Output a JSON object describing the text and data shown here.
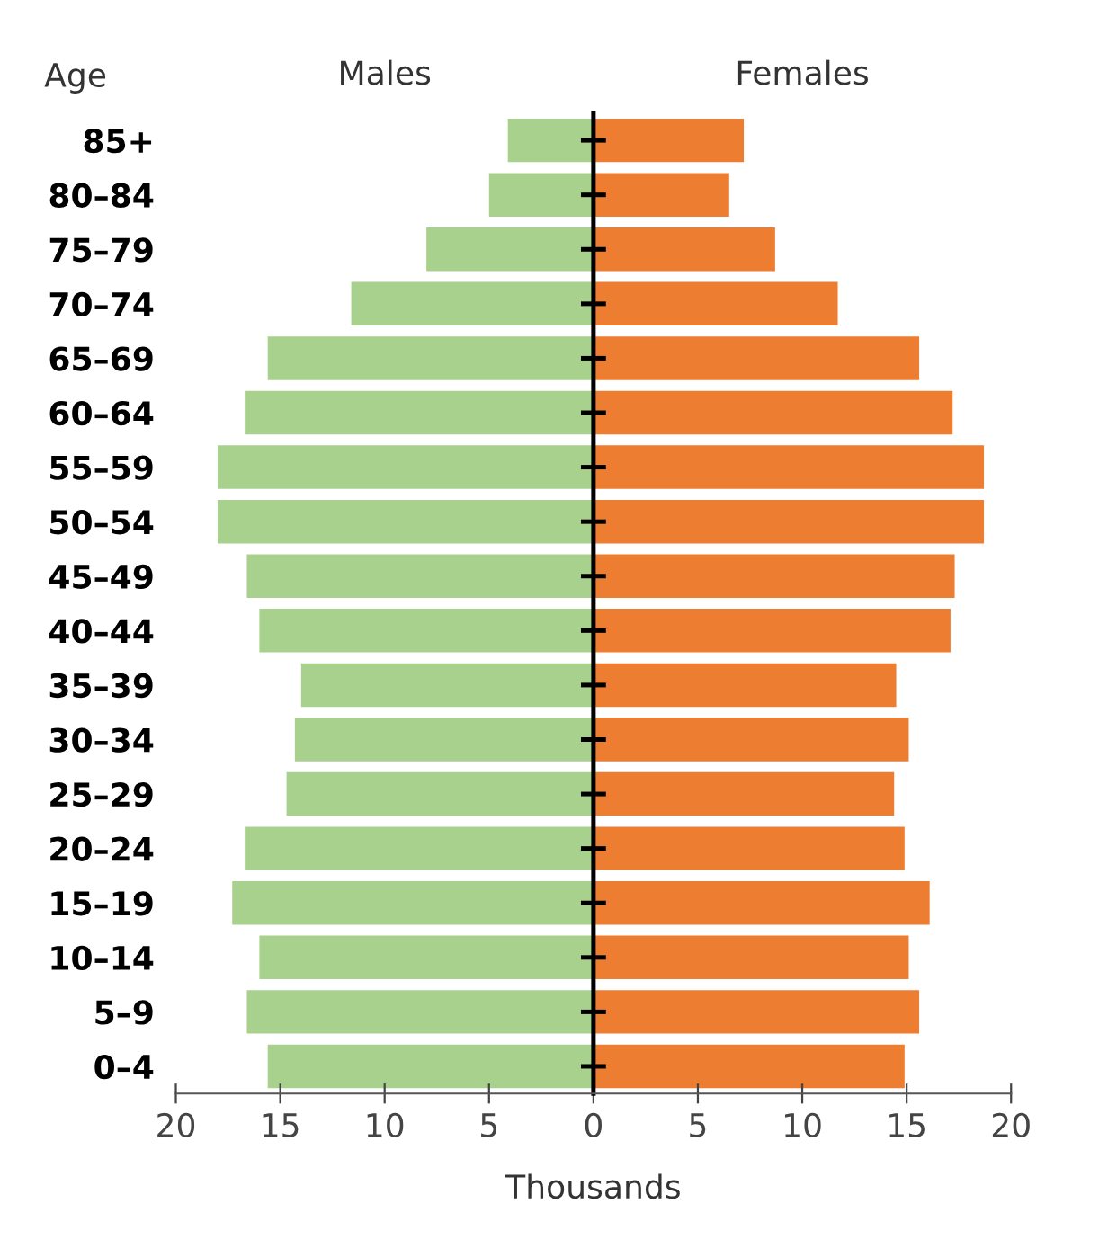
{
  "chart_data": {
    "type": "bar",
    "orientation": "horizontal",
    "stacked": true,
    "xlabel": "Thousands",
    "ylabel": "Age",
    "categories": [
      "85+",
      "80–84",
      "75–79",
      "70–74",
      "65–69",
      "60–64",
      "55–59",
      "50–54",
      "45–49",
      "40–44",
      "35–39",
      "30–34",
      "25–29",
      "20–24",
      "15–19",
      "10–14",
      "5–9",
      "0–4"
    ],
    "series": [
      {
        "name": "Males",
        "color": "#a9d18e",
        "values": [
          -4.1,
          -5.0,
          -8.0,
          -11.6,
          -15.6,
          -16.7,
          -18.0,
          -18.0,
          -16.6,
          -16.0,
          -14.0,
          -14.3,
          -14.7,
          -16.7,
          -17.3,
          -16.0,
          -16.6,
          -15.6
        ]
      },
      {
        "name": "Females",
        "color": "#ed7d31",
        "values": [
          7.2,
          6.5,
          8.7,
          11.7,
          15.6,
          17.2,
          18.7,
          18.7,
          17.3,
          17.1,
          14.5,
          15.1,
          14.4,
          14.9,
          16.1,
          15.1,
          15.6,
          14.9
        ]
      }
    ],
    "xlim": [
      -20,
      20
    ],
    "xticks": [
      {
        "value": -20,
        "label": "20"
      },
      {
        "value": -15,
        "label": "15"
      },
      {
        "value": -10,
        "label": "10"
      },
      {
        "value": -5,
        "label": "5"
      },
      0,
      5,
      10,
      15,
      20
    ]
  }
}
